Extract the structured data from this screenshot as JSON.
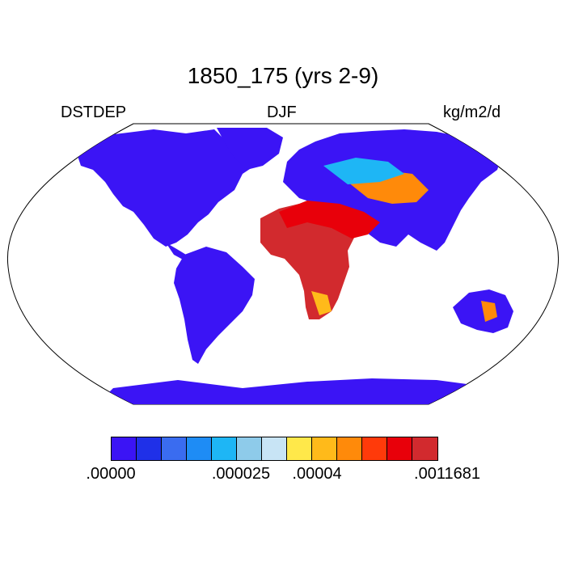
{
  "title": "1850_175 (yrs 2-9)",
  "left_label": "DSTDEP",
  "center_label": "DJF",
  "right_label": "kg/m2/d",
  "colorbar": {
    "colors": [
      "#3b14f5",
      "#1f30e8",
      "#3a6cf0",
      "#1e8cf5",
      "#1eb6f5",
      "#8ecbea",
      "#c8e4f5",
      "#ffe84a",
      "#ffba1a",
      "#ff8a0a",
      "#ff3a0a",
      "#e8000a",
      "#d22a2e"
    ],
    "labels": [
      ".00000",
      ".000025",
      ".00004",
      ".0011681"
    ]
  },
  "colors": {
    "ocean": "#ffffff",
    "land_base": "#3b14f5",
    "outline": "#000000"
  }
}
